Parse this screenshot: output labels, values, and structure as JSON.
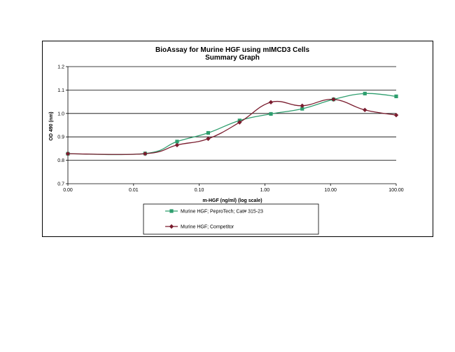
{
  "chart_data": {
    "type": "line",
    "title": "BioAssay for Murine HGF using mIMCD3 Cells",
    "subtitle": "Summary Graph",
    "xlabel": "m-HGF (ng/ml) (log scale)",
    "ylabel": "OD 490 (nm)",
    "x_scale": "log",
    "x_ticks": [
      "0.00",
      "0.01",
      "0.10",
      "1.00",
      "10.00",
      "100.00"
    ],
    "y_ticks": [
      "0.7",
      "0.8",
      "0.9",
      "1.0",
      "1.1",
      "1.2"
    ],
    "ylim": [
      0.7,
      1.2
    ],
    "grid": "horizontal",
    "legend_position": "bottom",
    "series": [
      {
        "name": "Murine HGF; PeproTech; Cat# 315-23",
        "color": "#2e9e6e",
        "marker": "square",
        "x": [
          0.001,
          0.015,
          0.046,
          0.137,
          0.412,
          1.235,
          3.704,
          11.11,
          33.33,
          100
        ],
        "y": [
          0.828,
          0.829,
          0.88,
          0.917,
          0.97,
          0.998,
          1.02,
          1.06,
          1.085,
          1.073
        ]
      },
      {
        "name": "Murine HGF; Competitor",
        "color": "#7a1c2e",
        "marker": "diamond",
        "x": [
          0.001,
          0.015,
          0.046,
          0.137,
          0.412,
          1.235,
          3.704,
          11.11,
          33.33,
          100
        ],
        "y": [
          0.828,
          0.828,
          0.865,
          0.892,
          0.962,
          1.048,
          1.033,
          1.06,
          1.015,
          0.993
        ]
      }
    ]
  }
}
